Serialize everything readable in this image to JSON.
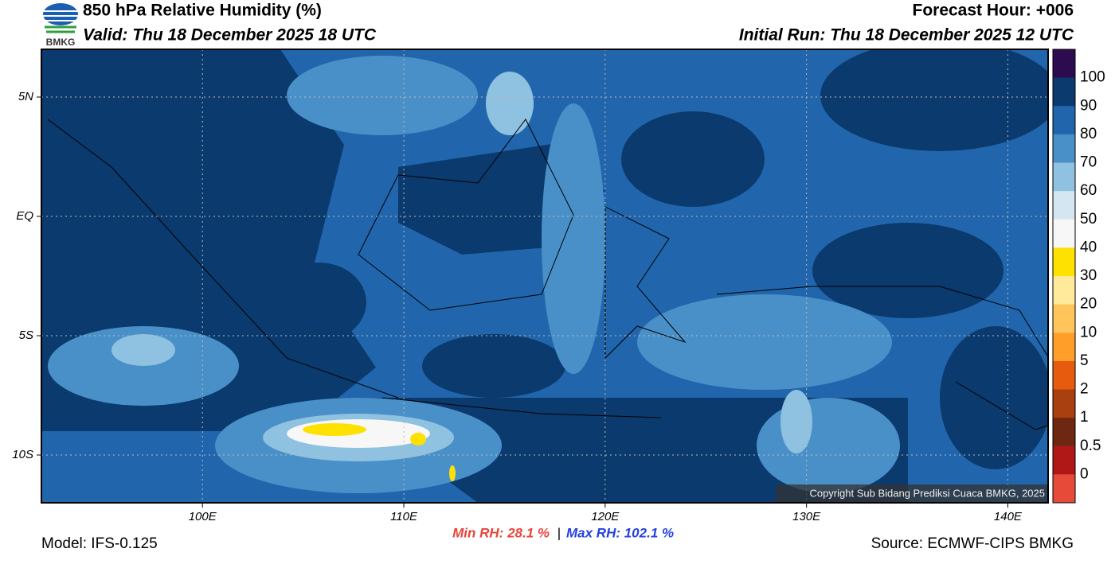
{
  "header": {
    "title": "850 hPa Relative Humidity (%)",
    "valid": "Valid: Thu 18 December 2025 18 UTC",
    "forecast_hour": "Forecast Hour: +006",
    "initial_run": "Initial Run: Thu 18 December 2025 12 UTC",
    "logo_text": "BMKG"
  },
  "map": {
    "xlim": [
      92,
      142
    ],
    "ylim": [
      -12,
      7
    ],
    "xticks": [
      {
        "value": 100,
        "label": "100E"
      },
      {
        "value": 110,
        "label": "110E"
      },
      {
        "value": 120,
        "label": "120E"
      },
      {
        "value": 130,
        "label": "130E"
      },
      {
        "value": 140,
        "label": "140E"
      }
    ],
    "yticks": [
      {
        "value": 5,
        "label": "5N"
      },
      {
        "value": 0,
        "label": "EQ"
      },
      {
        "value": -5,
        "label": "5S"
      },
      {
        "value": -10,
        "label": "10S"
      }
    ],
    "grid": true,
    "copyright": "Copyright Sub Bidang Prediksi Cuaca BMKG, 2025"
  },
  "colorbar": {
    "levels": [
      100,
      90,
      80,
      70,
      60,
      50,
      40,
      30,
      20,
      10,
      5,
      2,
      1,
      0.5,
      0
    ],
    "colors": [
      "#2d0b4f",
      "#0b3a6e",
      "#2166ac",
      "#4a90c8",
      "#8fc1e0",
      "#d3e6f2",
      "#f7f7f7",
      "#ffe100",
      "#ffe99a",
      "#ffc55a",
      "#ff9f2a",
      "#e65b0e",
      "#a8400f",
      "#6e2710",
      "#b01818",
      "#e84a3a"
    ]
  },
  "footer": {
    "model": "Model: IFS-0.125",
    "min_rh": "Min RH:  28.1 %",
    "separator": "|",
    "max_rh": "Max RH: 102.1 %",
    "source": "Source: ECMWF-CIPS BMKG"
  }
}
